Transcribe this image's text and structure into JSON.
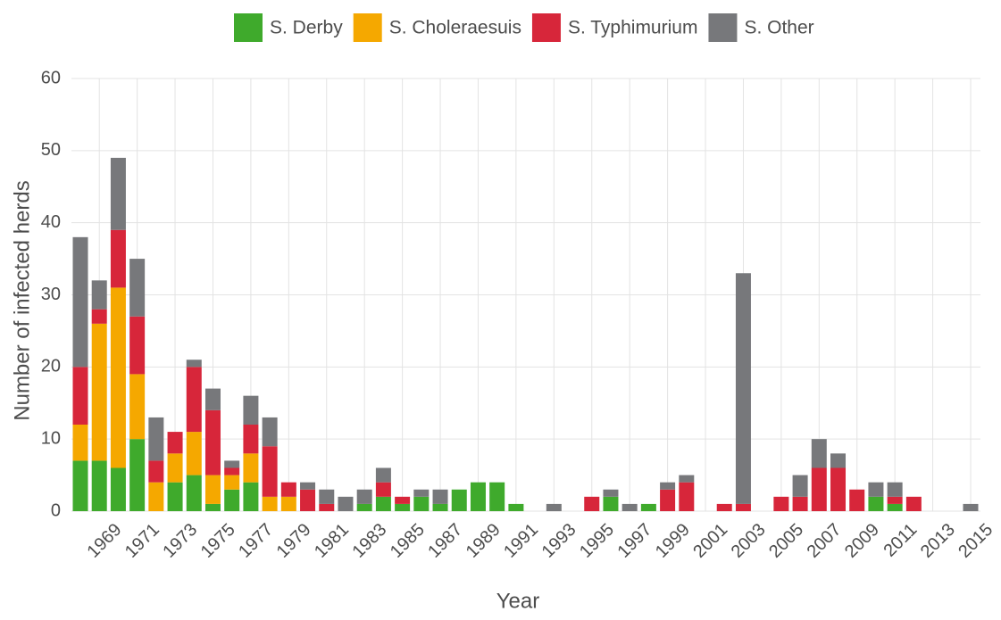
{
  "chart_data": {
    "type": "stacked_bar",
    "categories": [
      null,
      "1969",
      null,
      "1971",
      null,
      "1973",
      null,
      "1975",
      null,
      "1977",
      null,
      "1979",
      null,
      "1981",
      null,
      "1983",
      null,
      "1985",
      null,
      "1987",
      null,
      "1989",
      null,
      "1991",
      null,
      "1993",
      null,
      "1995",
      null,
      "1997",
      null,
      "1999",
      null,
      "2001",
      null,
      "2003",
      null,
      "2005",
      null,
      "2007",
      null,
      "2009",
      null,
      "2011",
      null,
      "2013",
      null,
      "2015"
    ],
    "series": [
      {
        "name": "S. Derby",
        "color": "#3faa2c",
        "values": [
          7,
          7,
          6,
          10,
          0,
          4,
          5,
          1,
          3,
          4,
          0,
          0,
          0,
          0,
          0,
          1,
          2,
          1,
          2,
          1,
          3,
          4,
          4,
          1,
          0,
          0,
          0,
          0,
          2,
          0,
          1,
          0,
          0,
          0,
          0,
          0,
          0,
          0,
          0,
          0,
          0,
          0,
          2,
          1,
          0,
          0,
          0,
          0
        ]
      },
      {
        "name": "S. Choleraesuis",
        "color": "#f5a800",
        "values": [
          5,
          19,
          25,
          9,
          4,
          4,
          6,
          4,
          2,
          4,
          2,
          2,
          0,
          0,
          0,
          0,
          0,
          0,
          0,
          0,
          0,
          0,
          0,
          0,
          0,
          0,
          0,
          0,
          0,
          0,
          0,
          0,
          0,
          0,
          0,
          0,
          0,
          0,
          0,
          0,
          0,
          0,
          0,
          0,
          0,
          0,
          0,
          0
        ]
      },
      {
        "name": "S. Typhimurium",
        "color": "#d7263a",
        "values": [
          8,
          2,
          8,
          8,
          3,
          3,
          9,
          9,
          1,
          4,
          7,
          2,
          3,
          1,
          0,
          0,
          2,
          1,
          0,
          0,
          0,
          0,
          0,
          0,
          0,
          0,
          0,
          2,
          0,
          0,
          0,
          3,
          4,
          0,
          1,
          1,
          0,
          2,
          2,
          6,
          6,
          3,
          0,
          1,
          2,
          0,
          0,
          0
        ]
      },
      {
        "name": "S. Other",
        "color": "#77787b",
        "values": [
          18,
          4,
          10,
          8,
          6,
          0,
          1,
          3,
          1,
          4,
          4,
          0,
          1,
          2,
          2,
          2,
          2,
          0,
          1,
          2,
          0,
          0,
          0,
          0,
          0,
          1,
          0,
          0,
          1,
          1,
          0,
          1,
          1,
          0,
          0,
          32,
          0,
          0,
          3,
          4,
          2,
          0,
          2,
          2,
          0,
          0,
          0,
          1
        ]
      }
    ],
    "x_label": "Year",
    "y_label": "Number of infected herds",
    "ylim": [
      0,
      60
    ],
    "yticks": [
      0,
      10,
      20,
      30,
      40,
      50,
      60
    ],
    "grid": true,
    "legend": "top"
  }
}
